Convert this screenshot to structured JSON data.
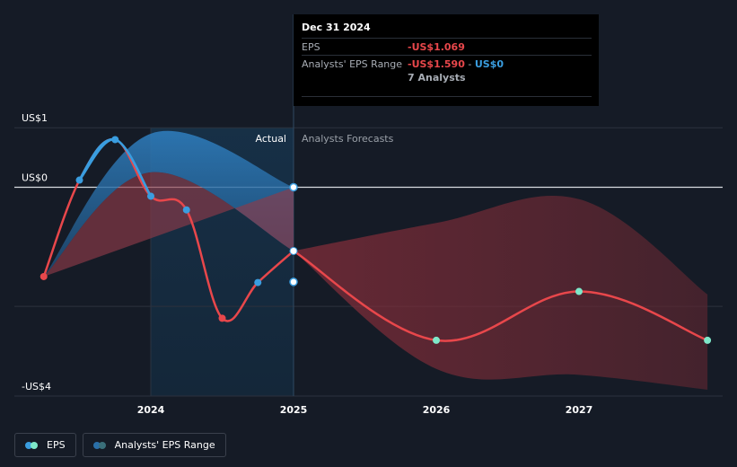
{
  "chart_data": {
    "type": "line",
    "y_ticks": [
      {
        "value": 1,
        "label": "US$1"
      },
      {
        "value": 0,
        "label": "US$0"
      },
      {
        "value": -4,
        "label": "-US$4"
      }
    ],
    "x_ticks": [
      {
        "value": 2024.0,
        "label": "2024"
      },
      {
        "value": 2025.0,
        "label": "2025"
      },
      {
        "value": 2026.0,
        "label": "2026"
      },
      {
        "value": 2027.0,
        "label": "2027"
      }
    ],
    "xlim": [
      2023.1,
      2027.9
    ],
    "ylim": [
      -4.1,
      1.0
    ],
    "divider_label_actual": "Actual",
    "divider_label_forecast": "Analysts Forecasts",
    "divider_x": 2025.0,
    "actual_range": {
      "x": [
        2023.25,
        2024.0,
        2025.0
      ],
      "high": [
        -1.5,
        0.9,
        0.0
      ],
      "low": [
        -1.5,
        0.25,
        -1.07
      ]
    },
    "forecast_range": {
      "x": [
        2025.0,
        2026.0,
        2027.0,
        2027.9
      ],
      "high": [
        -1.07,
        -0.6,
        -0.2,
        -1.8
      ],
      "low": [
        -1.07,
        -3.05,
        -3.15,
        -3.4
      ]
    },
    "eps_actual": {
      "x": [
        2023.25,
        2023.5,
        2023.75,
        2024.0,
        2024.25,
        2024.5,
        2024.75,
        2025.0
      ],
      "y": [
        -1.5,
        0.12,
        0.8,
        -0.15,
        -0.38,
        -2.2,
        -1.6,
        -1.07
      ],
      "blue_points": [
        1,
        2,
        3,
        4,
        6
      ]
    },
    "eps_forecast": {
      "x": [
        2025.0,
        2026.0,
        2027.0,
        2027.9
      ],
      "y": [
        -1.07,
        -2.57,
        -1.75,
        -2.57
      ]
    },
    "extra_markers": [
      {
        "x": 2025.0,
        "y": 0.0
      },
      {
        "x": 2025.0,
        "y": -1.59
      }
    ],
    "colors": {
      "eps_red": "#e8474b",
      "eps_blue": "#3a9ddf",
      "forecast_marker": "#7ee8c9",
      "range_blue": "#2a6fa8",
      "range_red": "#6b2a33",
      "actual_shade": "#16283a"
    }
  },
  "tooltip": {
    "date": "Dec 31 2024",
    "eps_label": "EPS",
    "eps_value": "-US$1.069",
    "range_label": "Analysts' EPS Range",
    "range_low": "-US$1.590",
    "range_sep": " - ",
    "range_high": "US$0",
    "analysts": "7 Analysts"
  },
  "legend": {
    "eps_label": "EPS",
    "range_label": "Analysts' EPS Range"
  }
}
